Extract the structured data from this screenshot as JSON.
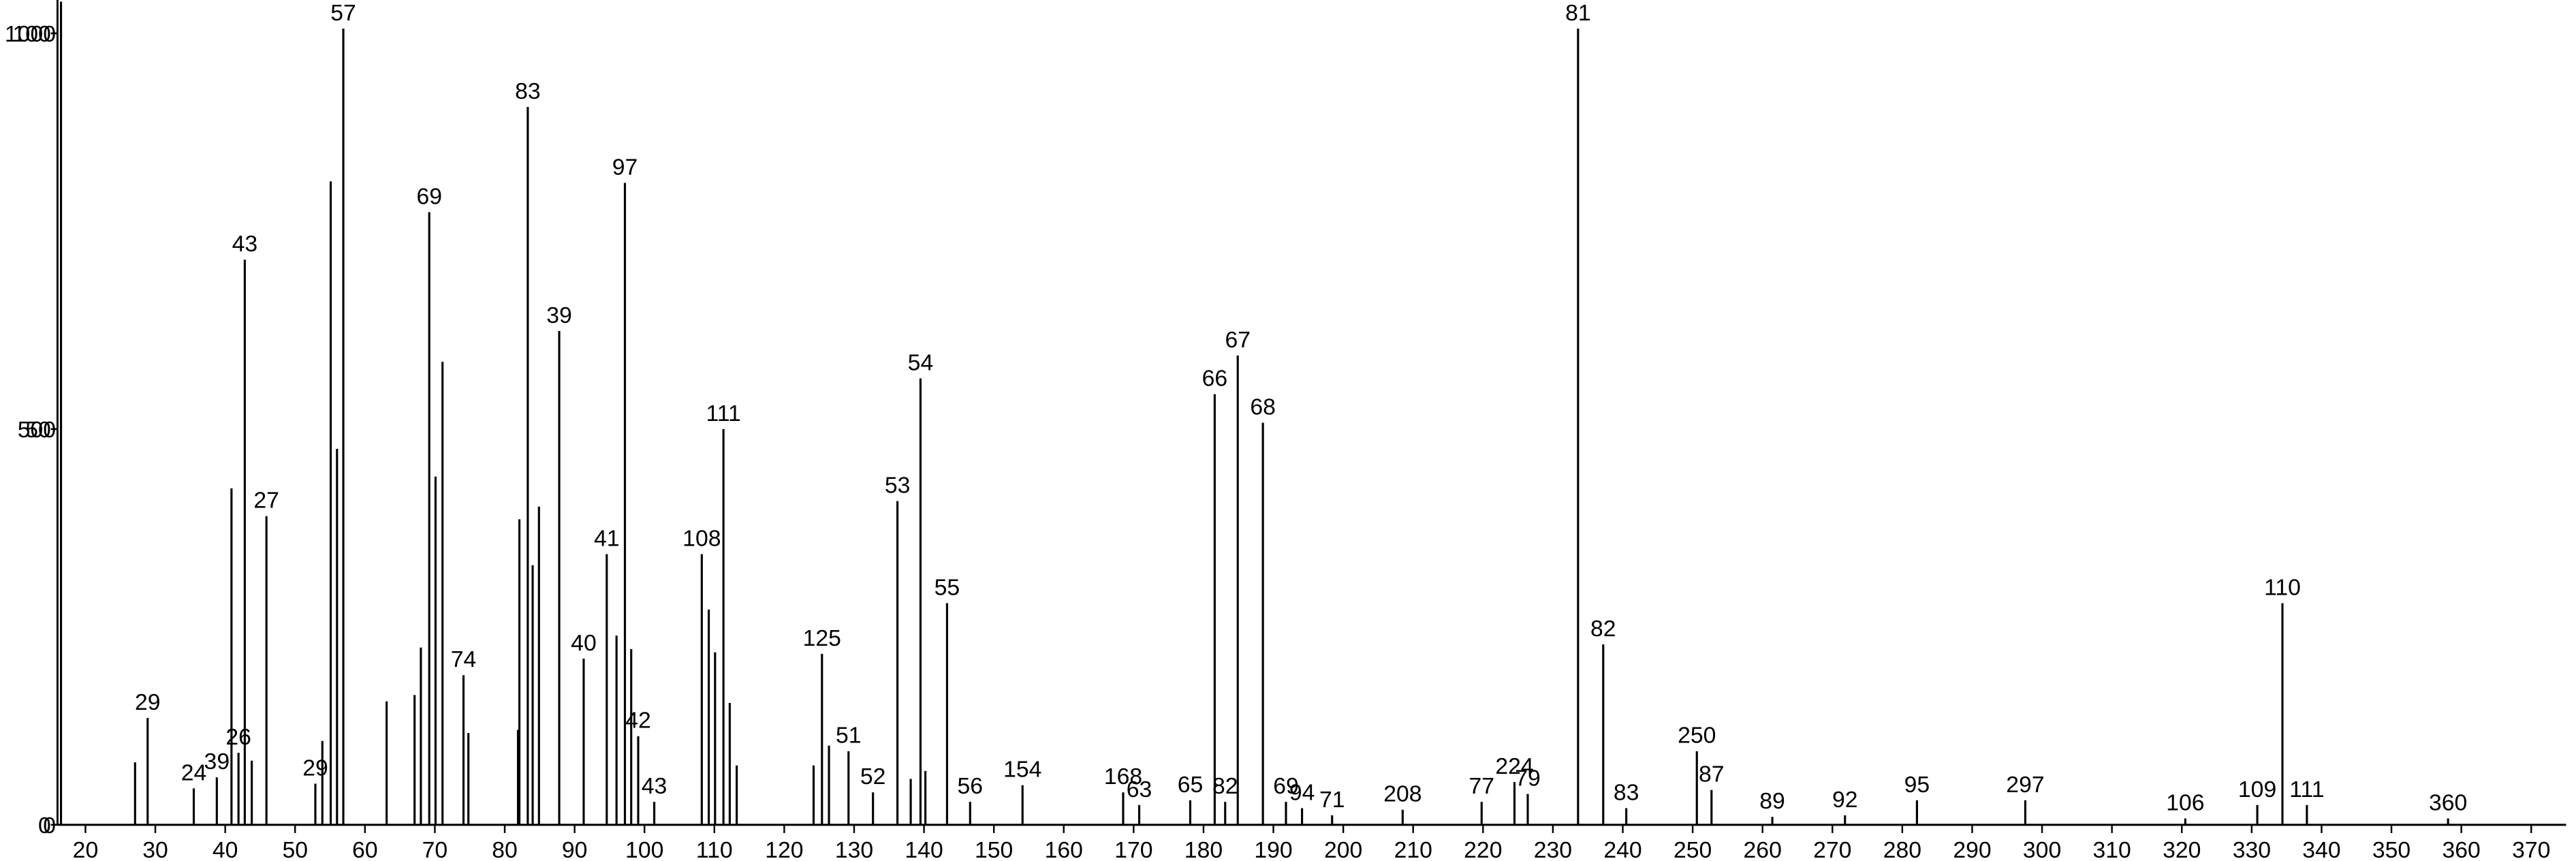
{
  "chart_data": {
    "type": "bar",
    "x": [
      16.5,
      27.1,
      28.9,
      35.5,
      38.8,
      40.9,
      41.9,
      42.8,
      43.8,
      45.9,
      52.9,
      53.9,
      55.1,
      56.0,
      56.9,
      63.1,
      67.1,
      68.0,
      69.2,
      70.1,
      71.1,
      74.1,
      74.8,
      81.9,
      82.1,
      83.3,
      84.0,
      84.9,
      87.8,
      91.3,
      94.6,
      96.0,
      97.2,
      98.1,
      99.1,
      101.4,
      108.2,
      109.2,
      110.1,
      111.3,
      112.2,
      113.2,
      124.2,
      125.4,
      126.4,
      129.2,
      132.7,
      136.2,
      138.1,
      139.5,
      140.2,
      143.3,
      146.6,
      154.1,
      168.5,
      170.8,
      178.1,
      181.6,
      183.1,
      184.9,
      188.5,
      191.8,
      194.1,
      198.4,
      208.5,
      219.8,
      224.5,
      226.4,
      233.6,
      237.2,
      240.5,
      250.6,
      252.7,
      261.4,
      271.8,
      282.1,
      297.6,
      320.5,
      330.8,
      334.4,
      337.9,
      358.1
    ],
    "values": [
      1040,
      79,
      135,
      46,
      60,
      425,
      91,
      714,
      81,
      390,
      52,
      106,
      813,
      475,
      1006,
      156,
      164,
      224,
      774,
      440,
      585,
      189,
      116,
      120,
      386,
      907,
      328,
      402,
      624,
      210,
      342,
      239,
      811,
      222,
      112,
      29,
      342,
      272,
      218,
      500,
      154,
      75,
      75,
      216,
      100,
      93,
      41,
      409,
      58,
      564,
      68,
      280,
      29,
      50,
      41,
      25,
      31,
      544,
      29,
      593,
      508,
      29,
      21,
      12,
      19,
      29,
      54,
      39,
      1006,
      228,
      21,
      93,
      44,
      10,
      12,
      31,
      31,
      8,
      25,
      280,
      25,
      8
    ],
    "labels": [
      null,
      null,
      "29",
      "24",
      "39",
      null,
      "26",
      "43",
      null,
      "27",
      "29",
      null,
      null,
      null,
      "57",
      null,
      null,
      null,
      "69",
      null,
      null,
      "74",
      null,
      null,
      null,
      "83",
      null,
      null,
      "39",
      "40",
      "41",
      null,
      "97",
      null,
      "42",
      "43",
      "108",
      null,
      null,
      "111",
      null,
      null,
      null,
      "125",
      null,
      "51",
      "52",
      "53",
      null,
      "54",
      null,
      "55",
      "56",
      "154",
      "168",
      "63",
      "65",
      "66",
      "82",
      "67",
      "68",
      "69",
      "94",
      "71",
      "208",
      "77",
      "224",
      "79",
      "81",
      "82",
      "83",
      "250",
      "87",
      "89",
      "92",
      "95",
      "297",
      "106",
      "109",
      "110",
      "111",
      "360"
    ],
    "color": "#000000",
    "xlim": [
      16,
      375
    ],
    "xticks": [
      20,
      30,
      40,
      50,
      60,
      70,
      80,
      90,
      100,
      110,
      120,
      130,
      140,
      150,
      160,
      170,
      180,
      190,
      200,
      210,
      220,
      230,
      240,
      250,
      260,
      270,
      280,
      290,
      300,
      310,
      320,
      330,
      340,
      350,
      360,
      370
    ],
    "ylim": [
      0,
      1040
    ],
    "yticks": [
      0,
      500,
      1000
    ],
    "y2lim": [
      0,
      104
    ],
    "y2ticks": [
      0,
      50,
      100
    ]
  }
}
